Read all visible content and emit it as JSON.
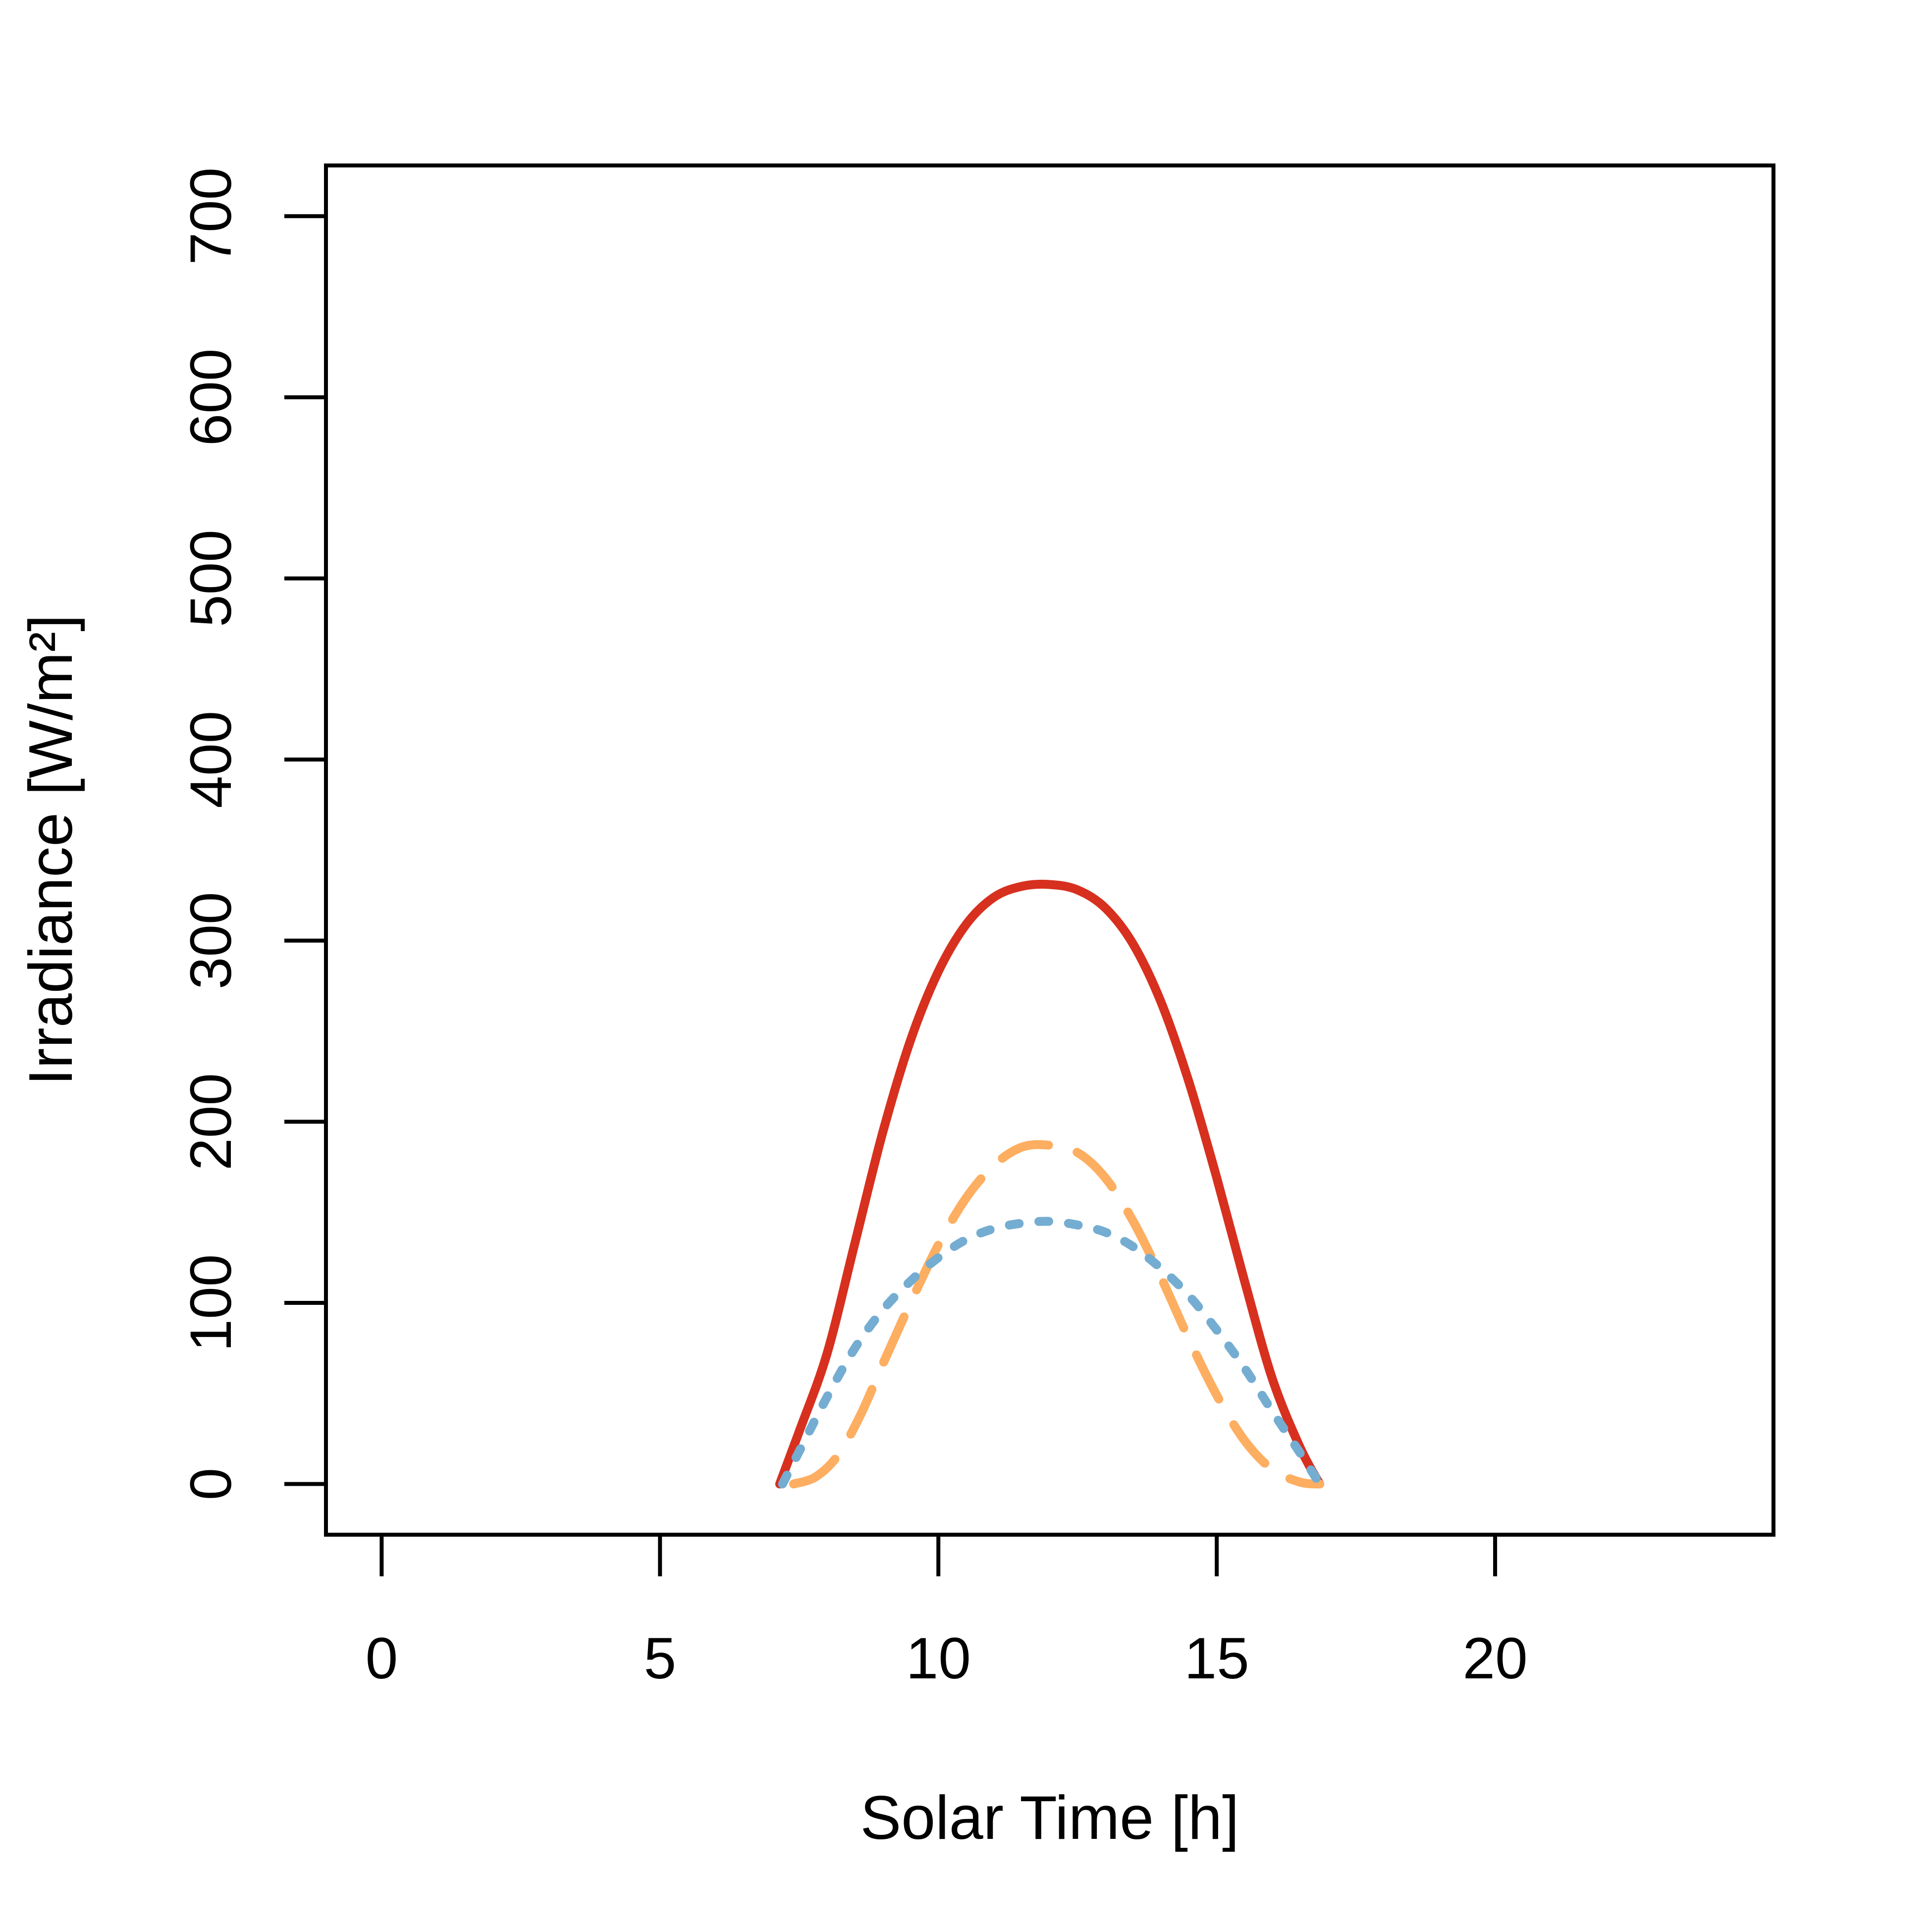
{
  "chart_data": {
    "type": "line",
    "title": "",
    "xlabel": "Solar Time [h]",
    "ylabel": "Irradiance [W/m²]",
    "xlim": [
      -1,
      25
    ],
    "ylim": [
      -28,
      728
    ],
    "xticks": [
      0,
      5,
      10,
      15,
      20
    ],
    "yticks": [
      0,
      100,
      200,
      300,
      400,
      500,
      600,
      700
    ],
    "grid": false,
    "legend": "none",
    "series": [
      {
        "style": "solid",
        "color": "#D7301F",
        "x": [
          7.15,
          7.5,
          8.0,
          8.5,
          9.0,
          9.5,
          10.0,
          10.5,
          11.0,
          11.5,
          12.0,
          12.5,
          13.0,
          13.5,
          14.0,
          14.5,
          15.0,
          15.5,
          16.0,
          16.5,
          16.85
        ],
        "y": [
          0,
          29,
          72,
          133,
          194,
          245,
          283,
          309,
          324,
          330,
          331,
          328,
          318,
          298,
          266,
          222,
          169,
          112,
          58,
          20,
          0
        ]
      },
      {
        "style": "dashed",
        "color": "#FDAE61",
        "x": [
          7.4,
          7.8,
          8.2,
          8.6,
          9.0,
          9.5,
          10.0,
          10.5,
          11.0,
          11.5,
          12.0,
          12.5,
          13.0,
          13.5,
          14.0,
          14.5,
          15.0,
          15.5,
          16.0,
          16.5,
          16.85
        ],
        "y": [
          0,
          4,
          16,
          38,
          66,
          100,
          132,
          158,
          176,
          186,
          187,
          183,
          169,
          145,
          114,
          80,
          49,
          24,
          8,
          1,
          0
        ]
      },
      {
        "style": "dotted",
        "color": "#74ADD1",
        "x": [
          7.2,
          7.5,
          8.0,
          8.5,
          9.0,
          9.5,
          10.0,
          10.5,
          11.0,
          11.5,
          12.0,
          12.5,
          13.0,
          13.5,
          14.0,
          14.5,
          15.0,
          15.5,
          16.0,
          16.5,
          16.85
        ],
        "y": [
          0,
          18,
          48,
          75,
          96,
          112,
          125,
          135,
          141,
          144,
          145,
          143,
          139,
          131,
          119,
          104,
          85,
          64,
          40,
          17,
          0
        ]
      }
    ]
  }
}
